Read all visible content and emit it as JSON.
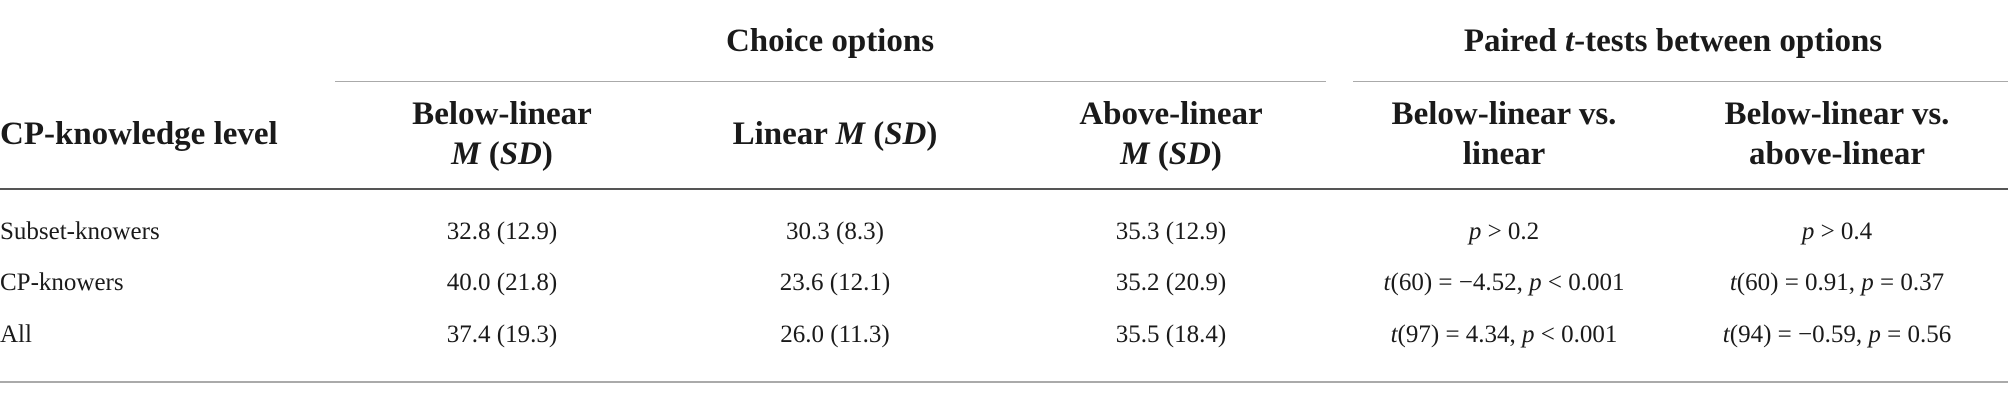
{
  "table": {
    "group_headers": [
      [
        {
          "text": "Choice options"
        }
      ],
      [
        {
          "text": "Paired "
        },
        {
          "text": "t",
          "italic": true
        },
        {
          "text": "-tests between options"
        }
      ]
    ],
    "columns": [
      [
        [
          {
            "text": "CP-knowledge level"
          }
        ]
      ],
      [
        [
          {
            "text": "Below-linear"
          }
        ],
        [
          {
            "text": "M",
            "italic": true
          },
          {
            "text": " ("
          },
          {
            "text": "SD",
            "italic": true
          },
          {
            "text": ")"
          }
        ]
      ],
      [
        [
          {
            "text": "Linear "
          },
          {
            "text": "M",
            "italic": true
          },
          {
            "text": " ("
          },
          {
            "text": "SD",
            "italic": true
          },
          {
            "text": ")"
          }
        ]
      ],
      [
        [
          {
            "text": "Above-linear"
          }
        ],
        [
          {
            "text": "M",
            "italic": true
          },
          {
            "text": " ("
          },
          {
            "text": "SD",
            "italic": true
          },
          {
            "text": ")"
          }
        ]
      ],
      [
        [
          {
            "text": "Below-linear vs."
          }
        ],
        [
          {
            "text": "linear"
          }
        ]
      ],
      [
        [
          {
            "text": "Below-linear vs."
          }
        ],
        [
          {
            "text": "above-linear"
          }
        ]
      ]
    ],
    "rows": [
      [
        [
          {
            "text": "Subset-knowers"
          }
        ],
        [
          {
            "text": "32.8 (12.9)"
          }
        ],
        [
          {
            "text": "30.3 (8.3)"
          }
        ],
        [
          {
            "text": "35.3 (12.9)"
          }
        ],
        [
          {
            "text": "p",
            "italic": true
          },
          {
            "text": " > 0.2"
          }
        ],
        [
          {
            "text": "p",
            "italic": true
          },
          {
            "text": " > 0.4"
          }
        ]
      ],
      [
        [
          {
            "text": "CP-knowers"
          }
        ],
        [
          {
            "text": "40.0 (21.8)"
          }
        ],
        [
          {
            "text": "23.6 (12.1)"
          }
        ],
        [
          {
            "text": "35.2 (20.9)"
          }
        ],
        [
          {
            "text": "t",
            "italic": true
          },
          {
            "text": "(60) = −4.52, "
          },
          {
            "text": "p",
            "italic": true
          },
          {
            "text": " < 0.001"
          }
        ],
        [
          {
            "text": "t",
            "italic": true
          },
          {
            "text": "(60) = 0.91, "
          },
          {
            "text": "p",
            "italic": true
          },
          {
            "text": " = 0.37"
          }
        ]
      ],
      [
        [
          {
            "text": "All"
          }
        ],
        [
          {
            "text": "37.4 (19.3)"
          }
        ],
        [
          {
            "text": "26.0 (11.3)"
          }
        ],
        [
          {
            "text": "35.5 (18.4)"
          }
        ],
        [
          {
            "text": "t",
            "italic": true
          },
          {
            "text": "(97) = 4.34, "
          },
          {
            "text": "p",
            "italic": true
          },
          {
            "text": " < 0.001"
          }
        ],
        [
          {
            "text": "t",
            "italic": true
          },
          {
            "text": "(94) = −0.59, "
          },
          {
            "text": "p",
            "italic": true
          },
          {
            "text": " = 0.56"
          }
        ]
      ]
    ]
  }
}
